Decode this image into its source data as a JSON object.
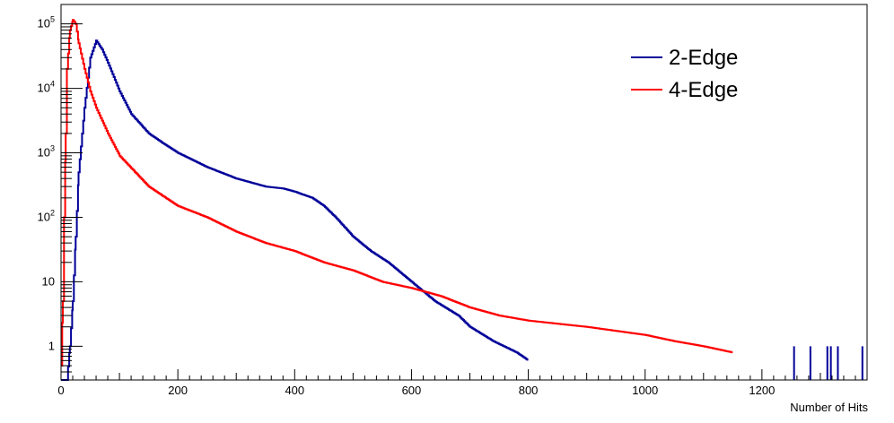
{
  "chart_data": {
    "type": "line",
    "title": "",
    "xlabel": "Number of Hits",
    "ylabel": "",
    "xlim": [
      0,
      1380
    ],
    "ylim": [
      0.3,
      200000
    ],
    "yscale": "log",
    "grid": false,
    "legend_position": "top-right",
    "x_ticks": [
      0,
      200,
      400,
      600,
      800,
      1000,
      1200
    ],
    "y_tick_labels": [
      {
        "value": 1,
        "base": "1",
        "exp": ""
      },
      {
        "value": 10,
        "base": "10",
        "exp": ""
      },
      {
        "value": 100,
        "base": "10",
        "exp": "2"
      },
      {
        "value": 1000,
        "base": "10",
        "exp": "3"
      },
      {
        "value": 10000,
        "base": "10",
        "exp": "4"
      },
      {
        "value": 100000,
        "base": "10",
        "exp": "5"
      }
    ],
    "series": [
      {
        "name": "2-Edge",
        "color": "#000099",
        "x": [
          0,
          10,
          15,
          20,
          25,
          30,
          40,
          50,
          60,
          70,
          80,
          90,
          100,
          120,
          150,
          175,
          200,
          250,
          300,
          350,
          380,
          400,
          430,
          450,
          470,
          500,
          530,
          560,
          600,
          640,
          680,
          700,
          740,
          780,
          800
        ],
        "y": [
          0.3,
          0.3,
          1,
          5,
          50,
          500,
          5000,
          30000,
          55000,
          40000,
          25000,
          15000,
          9000,
          4000,
          2000,
          1400,
          1000,
          600,
          400,
          300,
          280,
          250,
          200,
          150,
          100,
          50,
          30,
          20,
          10,
          5,
          3,
          2,
          1.2,
          0.8,
          0.6
        ]
      },
      {
        "name": "4-Edge",
        "color": "#ff0000",
        "x": [
          0,
          3,
          5,
          8,
          10,
          15,
          20,
          25,
          30,
          40,
          50,
          60,
          80,
          100,
          150,
          200,
          250,
          300,
          350,
          400,
          450,
          500,
          550,
          600,
          650,
          700,
          750,
          800,
          900,
          1000,
          1050,
          1100,
          1150
        ],
        "y": [
          0.5,
          5,
          100,
          2000,
          20000,
          80000,
          115000,
          100000,
          50000,
          20000,
          9000,
          5000,
          2000,
          900,
          300,
          150,
          100,
          60,
          40,
          30,
          20,
          15,
          10,
          8,
          6,
          4,
          3,
          2.5,
          2,
          1.5,
          1.2,
          1,
          0.8
        ]
      }
    ],
    "isolated_spikes": [
      {
        "series": "2-Edge",
        "x": [
          1255,
          1283,
          1312,
          1318,
          1330,
          1372
        ],
        "y": [
          1,
          1,
          1,
          1,
          1,
          1
        ]
      }
    ]
  }
}
